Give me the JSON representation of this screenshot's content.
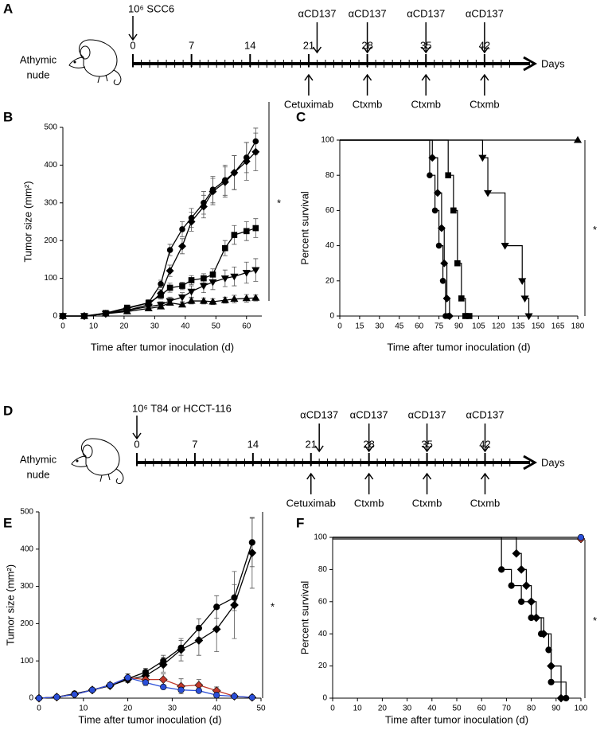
{
  "timelines": [
    {
      "panel": "A",
      "host": [
        "Athymic",
        "nude"
      ],
      "inoculation": "10⁶ SCC6",
      "xlim": [
        0,
        48
      ],
      "ticks": [
        0,
        7,
        14,
        21,
        28,
        35,
        42
      ],
      "unit": "Days",
      "above": [
        {
          "day": 22,
          "text": "αCD137"
        },
        {
          "day": 28,
          "text": "αCD137"
        },
        {
          "day": 35,
          "text": "αCD137"
        },
        {
          "day": 42,
          "text": "αCD137"
        }
      ],
      "below": [
        {
          "day": 21,
          "text": "Cetuximab"
        },
        {
          "day": 28,
          "text": "Ctxmb"
        },
        {
          "day": 35,
          "text": "Ctxmb"
        },
        {
          "day": 42,
          "text": "Ctxmb"
        }
      ]
    },
    {
      "panel": "D",
      "host": [
        "Athymic",
        "nude"
      ],
      "inoculation": "10⁶ T84 or HCCT-116",
      "xlim": [
        0,
        48
      ],
      "ticks": [
        0,
        7,
        14,
        21,
        28,
        35,
        42
      ],
      "unit": "Days",
      "above": [
        {
          "day": 22,
          "text": "αCD137"
        },
        {
          "day": 28,
          "text": "αCD137"
        },
        {
          "day": 35,
          "text": "αCD137"
        },
        {
          "day": 42,
          "text": "αCD137"
        }
      ],
      "below": [
        {
          "day": 21,
          "text": "Cetuximab"
        },
        {
          "day": 28,
          "text": "Ctxmb"
        },
        {
          "day": 35,
          "text": "Ctxmb"
        },
        {
          "day": 42,
          "text": "Ctxmb"
        }
      ]
    }
  ],
  "chart_data": [
    {
      "type": "line",
      "panel": "B",
      "x_label": "Time after tumor inoculation (d)",
      "y_label": "Tumor size (mm²)",
      "annotation": "*",
      "xlim": [
        0,
        65
      ],
      "xticks": [
        0,
        10,
        20,
        30,
        40,
        50,
        60
      ],
      "ylim": [
        0,
        500
      ],
      "yticks": [
        0,
        100,
        200,
        300,
        400,
        500
      ],
      "x": [
        0,
        7,
        14,
        21,
        28,
        32,
        35,
        39,
        42,
        46,
        49,
        53,
        56,
        60,
        63
      ],
      "series": [
        {
          "marker": "circle",
          "color": "#000000",
          "values": [
            0,
            0,
            6,
            20,
            35,
            85,
            175,
            230,
            260,
            300,
            335,
            360,
            380,
            420,
            463
          ],
          "errors": [
            0,
            0,
            2,
            5,
            8,
            10,
            15,
            20,
            25,
            30,
            35,
            40,
            45,
            40,
            35
          ]
        },
        {
          "marker": "diamond",
          "color": "#000000",
          "values": [
            0,
            0,
            6,
            15,
            30,
            60,
            120,
            185,
            250,
            290,
            330,
            355,
            380,
            410,
            435
          ],
          "errors": [
            0,
            0,
            2,
            5,
            8,
            10,
            15,
            20,
            25,
            30,
            35,
            40,
            45,
            50,
            50
          ]
        },
        {
          "marker": "square",
          "color": "#000000",
          "values": [
            0,
            0,
            8,
            22,
            35,
            55,
            75,
            80,
            95,
            100,
            110,
            180,
            215,
            225,
            233
          ],
          "errors": [
            0,
            0,
            2,
            5,
            8,
            10,
            12,
            10,
            12,
            12,
            15,
            20,
            25,
            25,
            25
          ]
        },
        {
          "marker": "triangle-down",
          "color": "#000000",
          "values": [
            0,
            0,
            6,
            15,
            25,
            30,
            40,
            50,
            65,
            80,
            90,
            100,
            105,
            115,
            122
          ],
          "errors": [
            0,
            0,
            2,
            5,
            5,
            8,
            10,
            12,
            15,
            18,
            20,
            22,
            25,
            28,
            30
          ]
        },
        {
          "marker": "triangle-up",
          "color": "#000000",
          "values": [
            0,
            0,
            6,
            12,
            20,
            25,
            35,
            30,
            40,
            40,
            38,
            42,
            45,
            47,
            48
          ],
          "errors": [
            0,
            0,
            2,
            4,
            5,
            5,
            6,
            6,
            8,
            8,
            8,
            8,
            10,
            10,
            8
          ]
        }
      ]
    },
    {
      "type": "step",
      "panel": "C",
      "x_label": "Time after tumor inoculation (d)",
      "y_label": "Percent survival",
      "annotation": "*",
      "xlim": [
        0,
        180
      ],
      "xticks": [
        0,
        15,
        30,
        45,
        60,
        75,
        90,
        105,
        120,
        135,
        150,
        165,
        180
      ],
      "ylim": [
        0,
        100
      ],
      "yticks": [
        0,
        20,
        40,
        60,
        80,
        100
      ],
      "series": [
        {
          "marker": "triangle-up",
          "color": "#000000",
          "x": [
            0,
            180
          ],
          "values": [
            100,
            100
          ]
        },
        {
          "marker": "circle",
          "color": "#000000",
          "x": [
            0,
            68,
            72,
            75,
            78,
            80,
            82
          ],
          "values": [
            100,
            80,
            60,
            40,
            20,
            0,
            0
          ]
        },
        {
          "marker": "diamond",
          "color": "#000000",
          "x": [
            0,
            70,
            74,
            77,
            79,
            81,
            83
          ],
          "values": [
            100,
            90,
            70,
            50,
            30,
            10,
            0
          ]
        },
        {
          "marker": "square",
          "color": "#000000",
          "x": [
            0,
            82,
            86,
            89,
            92,
            95,
            98
          ],
          "values": [
            100,
            80,
            60,
            30,
            10,
            0,
            0
          ]
        },
        {
          "marker": "triangle-down",
          "color": "#000000",
          "x": [
            0,
            108,
            112,
            125,
            138,
            140,
            143
          ],
          "values": [
            100,
            90,
            70,
            40,
            20,
            10,
            0
          ]
        }
      ]
    },
    {
      "type": "line",
      "panel": "E",
      "x_label": "Time after tumor inoculation (d)",
      "y_label": "Tumor size (mm²)",
      "annotation": "*",
      "xlim": [
        0,
        50
      ],
      "xticks": [
        0,
        10,
        20,
        30,
        40,
        50
      ],
      "ylim": [
        0,
        500
      ],
      "yticks": [
        0,
        100,
        200,
        300,
        400,
        500
      ],
      "x": [
        0,
        4,
        8,
        12,
        16,
        20,
        24,
        28,
        32,
        36,
        40,
        44,
        48
      ],
      "series": [
        {
          "marker": "circle",
          "color": "#000000",
          "values": [
            0,
            3,
            12,
            22,
            35,
            52,
            70,
            100,
            135,
            188,
            245,
            270,
            418
          ],
          "errors": [
            0,
            1,
            3,
            4,
            6,
            8,
            10,
            15,
            20,
            25,
            30,
            35,
            65
          ]
        },
        {
          "marker": "diamond",
          "color": "#000000",
          "values": [
            0,
            3,
            10,
            22,
            33,
            50,
            60,
            90,
            130,
            155,
            185,
            250,
            390
          ],
          "errors": [
            0,
            1,
            3,
            4,
            6,
            8,
            12,
            20,
            30,
            40,
            60,
            90,
            95
          ]
        },
        {
          "marker": "diamond",
          "color": "#c0392b",
          "values": [
            0,
            3,
            10,
            22,
            35,
            55,
            50,
            50,
            32,
            35,
            20,
            5,
            2
          ],
          "errors": [
            0,
            1,
            3,
            4,
            6,
            10,
            12,
            15,
            20,
            15,
            10,
            5,
            2
          ]
        },
        {
          "marker": "circle",
          "color": "#2b4fd8",
          "values": [
            0,
            3,
            10,
            22,
            35,
            55,
            42,
            30,
            22,
            20,
            8,
            5,
            2
          ],
          "errors": [
            0,
            1,
            3,
            4,
            6,
            10,
            8,
            5,
            5,
            5,
            4,
            3,
            1
          ]
        }
      ]
    },
    {
      "type": "step",
      "panel": "F",
      "x_label": "Time after tumor inoculation (d)",
      "y_label": "Percent survival",
      "annotation": "*",
      "xlim": [
        0,
        100
      ],
      "xticks": [
        0,
        10,
        20,
        30,
        40,
        50,
        60,
        70,
        80,
        90,
        100
      ],
      "ylim": [
        0,
        100
      ],
      "yticks": [
        0,
        20,
        40,
        60,
        80,
        100
      ],
      "series": [
        {
          "marker": "diamond",
          "color": "#c0392b",
          "x": [
            0,
            100
          ],
          "values": [
            99,
            99
          ]
        },
        {
          "marker": "circle",
          "color": "#2b4fd8",
          "x": [
            0,
            100
          ],
          "values": [
            100,
            100
          ]
        },
        {
          "marker": "circle",
          "color": "#000000",
          "x": [
            0,
            68,
            72,
            76,
            80,
            84,
            87,
            88,
            94
          ],
          "values": [
            100,
            80,
            70,
            60,
            50,
            40,
            30,
            10,
            0
          ]
        },
        {
          "marker": "diamond",
          "color": "#000000",
          "x": [
            0,
            74,
            76,
            78,
            80,
            82,
            85,
            88,
            92
          ],
          "values": [
            100,
            90,
            80,
            70,
            60,
            50,
            40,
            20,
            0
          ]
        }
      ]
    }
  ]
}
